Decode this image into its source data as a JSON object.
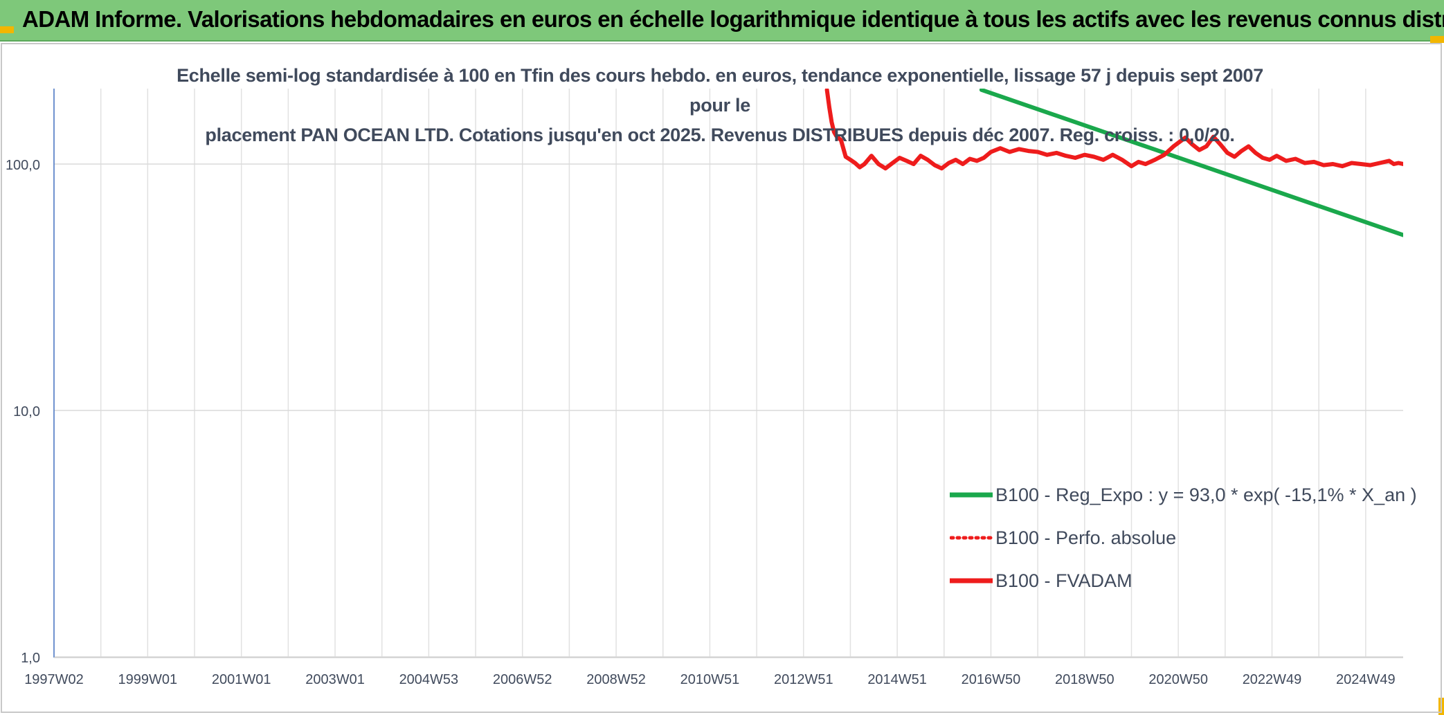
{
  "banner": {
    "title": "ADAM Informe. Valorisations hebdomadaires en euros en échelle logarithmique identique à tous les actifs avec les revenus connus distribués"
  },
  "chart_data": {
    "type": "line",
    "title_lines": [
      "Echelle semi-log standardisée à 100 en Tfin des cours hebdo. en euros, tendance exponentielle, lissage 57 j depuis sept 2007 pour le",
      "placement PAN OCEAN LTD. Cotations jusqu'en oct 2025. Revenus DISTRIBUES depuis déc 2007. Reg. croiss. : 0,0/20."
    ],
    "y_scale": "log",
    "ylim": [
      1,
      200
    ],
    "y_ticks": [
      {
        "value": 100,
        "label": "100,0"
      },
      {
        "value": 10,
        "label": "10,0"
      },
      {
        "value": 1,
        "label": "1,0"
      }
    ],
    "xlim": [
      1997.0,
      2025.8
    ],
    "x_ticks": [
      {
        "value": 1997.0,
        "label": "1997W02"
      },
      {
        "value": 1999.0,
        "label": "1999W01"
      },
      {
        "value": 2001.0,
        "label": "2001W01"
      },
      {
        "value": 2003.0,
        "label": "2003W01"
      },
      {
        "value": 2005.0,
        "label": "2004W53"
      },
      {
        "value": 2007.0,
        "label": "2006W52"
      },
      {
        "value": 2009.0,
        "label": "2008W52"
      },
      {
        "value": 2011.0,
        "label": "2010W51"
      },
      {
        "value": 2013.0,
        "label": "2012W51"
      },
      {
        "value": 2015.0,
        "label": "2014W51"
      },
      {
        "value": 2017.0,
        "label": "2016W50"
      },
      {
        "value": 2019.0,
        "label": "2018W50"
      },
      {
        "value": 2021.0,
        "label": "2020W50"
      },
      {
        "value": 2023.0,
        "label": "2022W49"
      },
      {
        "value": 2025.0,
        "label": "2024W49"
      }
    ],
    "grid": true,
    "legend_position": "bottom-right",
    "series": [
      {
        "name": "B100 - Reg_Expo : y = 93,0 * exp( -15,1% *  X_an )",
        "color": "#1aa84c",
        "style": "solid",
        "x": [
          2016.8,
          2025.8
        ],
        "y": [
          200,
          51.5
        ]
      },
      {
        "name": "B100 - Perfo. absolue",
        "color": "#ee1c1c",
        "style": "dotted",
        "x": [],
        "y": []
      },
      {
        "name": "B100 - FVADAM",
        "color": "#ee1c1c",
        "style": "solid",
        "x": [
          2013.5,
          2013.55,
          2013.6,
          2013.65,
          2013.7,
          2013.8,
          2013.9,
          2014.0,
          2014.1,
          2014.2,
          2014.3,
          2014.45,
          2014.6,
          2014.75,
          2014.9,
          2015.05,
          2015.2,
          2015.35,
          2015.5,
          2015.65,
          2015.8,
          2015.95,
          2016.1,
          2016.25,
          2016.4,
          2016.55,
          2016.7,
          2016.85,
          2017.0,
          2017.2,
          2017.4,
          2017.6,
          2017.8,
          2018.0,
          2018.2,
          2018.4,
          2018.6,
          2018.8,
          2019.0,
          2019.2,
          2019.4,
          2019.6,
          2019.8,
          2020.0,
          2020.15,
          2020.3,
          2020.5,
          2020.7,
          2020.9,
          2021.0,
          2021.15,
          2021.3,
          2021.45,
          2021.6,
          2021.75,
          2021.9,
          2022.05,
          2022.2,
          2022.35,
          2022.5,
          2022.65,
          2022.8,
          2022.95,
          2023.1,
          2023.3,
          2023.5,
          2023.7,
          2023.9,
          2024.1,
          2024.3,
          2024.5,
          2024.7,
          2024.9,
          2025.1,
          2025.3,
          2025.5,
          2025.6,
          2025.7,
          2025.8
        ],
        "y": [
          200,
          170,
          148,
          135,
          130,
          125,
          107,
          104,
          101,
          97,
          100,
          108,
          100,
          96,
          101,
          106,
          103,
          100,
          108,
          104,
          99,
          96,
          101,
          104,
          100,
          105,
          103,
          106,
          112,
          116,
          112,
          115,
          113,
          112,
          109,
          111,
          108,
          106,
          109,
          107,
          104,
          109,
          104,
          98,
          102,
          100,
          104,
          109,
          118,
          122,
          128,
          120,
          114,
          118,
          129,
          120,
          111,
          107,
          113,
          118,
          111,
          106,
          104,
          108,
          103,
          105,
          101,
          102,
          99,
          100,
          98,
          101,
          100,
          99,
          101,
          103,
          100,
          101,
          100
        ]
      }
    ]
  }
}
